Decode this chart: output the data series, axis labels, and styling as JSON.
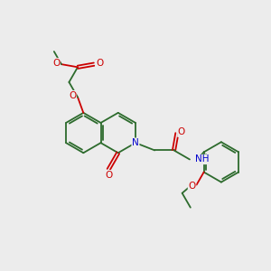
{
  "bg_color": "#ececec",
  "bond_color": "#2d6b2d",
  "O_color": "#cc0000",
  "N_color": "#0000cc",
  "lw": 1.3,
  "do": 0.055,
  "fs": 7.5,
  "fig_w": 3.0,
  "fig_h": 3.0,
  "dpi": 100,
  "xlim": [
    0,
    10
  ],
  "ylim": [
    0,
    10
  ]
}
